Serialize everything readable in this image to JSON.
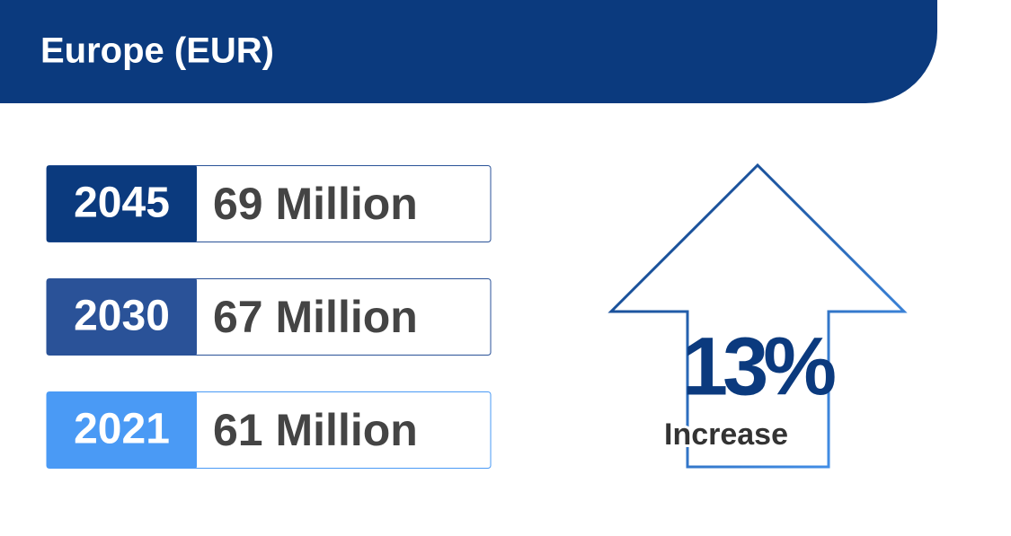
{
  "header": {
    "title": "Europe (EUR)"
  },
  "rows": [
    {
      "year": "2045",
      "value": "69 Million"
    },
    {
      "year": "2030",
      "value": "67 Million"
    },
    {
      "year": "2021",
      "value": "61 Million"
    }
  ],
  "highlight": {
    "value": "13%",
    "label": "Increase"
  }
}
